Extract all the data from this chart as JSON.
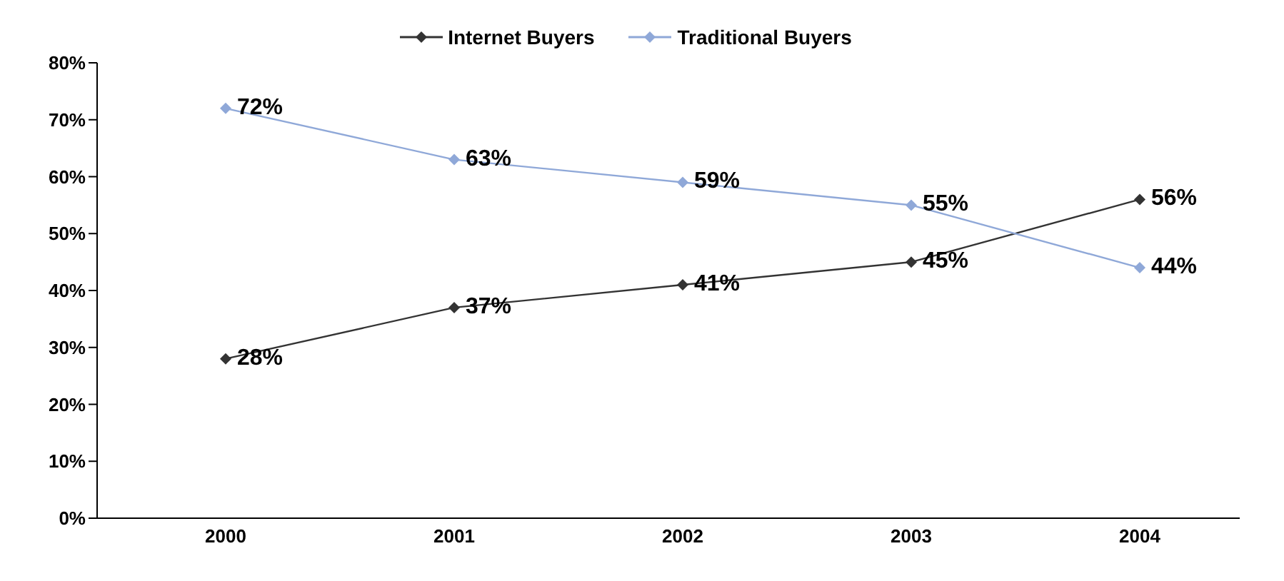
{
  "chart_data": {
    "type": "line",
    "categories": [
      "2000",
      "2001",
      "2002",
      "2003",
      "2004"
    ],
    "series": [
      {
        "name": "Internet Buyers",
        "color": "#333333",
        "values": [
          28,
          37,
          41,
          45,
          56
        ],
        "value_labels": [
          "28%",
          "37%",
          "41%",
          "45%",
          "56%"
        ]
      },
      {
        "name": "Traditional Buyers",
        "color": "#8fa8d8",
        "values": [
          72,
          63,
          59,
          55,
          44
        ],
        "value_labels": [
          "72%",
          "63%",
          "59%",
          "55%",
          "44%"
        ]
      }
    ],
    "ylim": [
      0,
      80
    ],
    "yticks": [
      {
        "value": 0,
        "label": "0%"
      },
      {
        "value": 10,
        "label": "10%"
      },
      {
        "value": 20,
        "label": "20%"
      },
      {
        "value": 30,
        "label": "30%"
      },
      {
        "value": 40,
        "label": "40%"
      },
      {
        "value": 50,
        "label": "50%"
      },
      {
        "value": 60,
        "label": "60%"
      },
      {
        "value": 70,
        "label": "70%"
      },
      {
        "value": 80,
        "label": "80%"
      }
    ],
    "grid": false,
    "legend": "top",
    "marker": "diamond",
    "line_style": "solid"
  }
}
